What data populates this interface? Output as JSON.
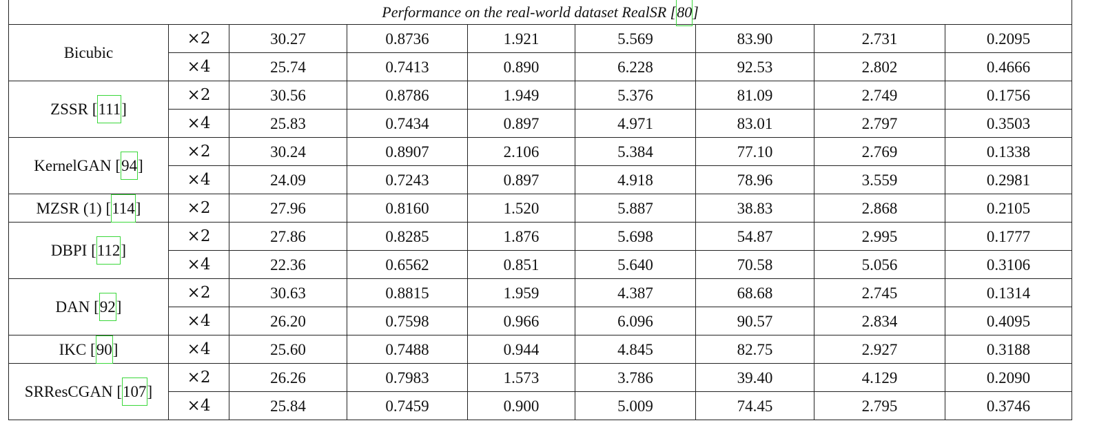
{
  "caption": {
    "prefix": "Performance on the real-world dataset RealSR [",
    "ref": "80",
    "suffix": "]"
  },
  "groups": [
    {
      "method": "Bicubic",
      "ref": "",
      "rows": [
        [
          "×2",
          "30.27",
          "0.8736",
          "1.921",
          "5.569",
          "83.90",
          "2.731",
          "0.2095"
        ],
        [
          "×4",
          "25.74",
          "0.7413",
          "0.890",
          "6.228",
          "92.53",
          "2.802",
          "0.4666"
        ]
      ]
    },
    {
      "method": "ZSSR",
      "ref": "111",
      "rows": [
        [
          "×2",
          "30.56",
          "0.8786",
          "1.949",
          "5.376",
          "81.09",
          "2.749",
          "0.1756"
        ],
        [
          "×4",
          "25.83",
          "0.7434",
          "0.897",
          "4.971",
          "83.01",
          "2.797",
          "0.3503"
        ]
      ]
    },
    {
      "method": "KernelGAN",
      "ref": "94",
      "rows": [
        [
          "×2",
          "30.24",
          "0.8907",
          "2.106",
          "5.384",
          "77.10",
          "2.769",
          "0.1338"
        ],
        [
          "×4",
          "24.09",
          "0.7243",
          "0.897",
          "4.918",
          "78.96",
          "3.559",
          "0.2981"
        ]
      ]
    },
    {
      "method": "MZSR (1)",
      "ref": "114",
      "rows": [
        [
          "×2",
          "27.96",
          "0.8160",
          "1.520",
          "5.887",
          "38.83",
          "2.868",
          "0.2105"
        ]
      ]
    },
    {
      "method": "DBPI",
      "ref": "112",
      "rows": [
        [
          "×2",
          "27.86",
          "0.8285",
          "1.876",
          "5.698",
          "54.87",
          "2.995",
          "0.1777"
        ],
        [
          "×4",
          "22.36",
          "0.6562",
          "0.851",
          "5.640",
          "70.58",
          "5.056",
          "0.3106"
        ]
      ]
    },
    {
      "method": "DAN",
      "ref": "92",
      "rows": [
        [
          "×2",
          "30.63",
          "0.8815",
          "1.959",
          "4.387",
          "68.68",
          "2.745",
          "0.1314"
        ],
        [
          "×4",
          "26.20",
          "0.7598",
          "0.966",
          "6.096",
          "90.57",
          "2.834",
          "0.4095"
        ]
      ]
    },
    {
      "method": "IKC",
      "ref": "90",
      "rows": [
        [
          "×4",
          "25.60",
          "0.7488",
          "0.944",
          "4.845",
          "82.75",
          "2.927",
          "0.3188"
        ]
      ]
    },
    {
      "method": "SRResCGAN",
      "ref": "107",
      "rows": [
        [
          "×2",
          "26.26",
          "0.7983",
          "1.573",
          "3.786",
          "39.40",
          "4.129",
          "0.2090"
        ],
        [
          "×4",
          "25.84",
          "0.7459",
          "0.900",
          "5.009",
          "74.45",
          "2.795",
          "0.3746"
        ]
      ]
    }
  ]
}
